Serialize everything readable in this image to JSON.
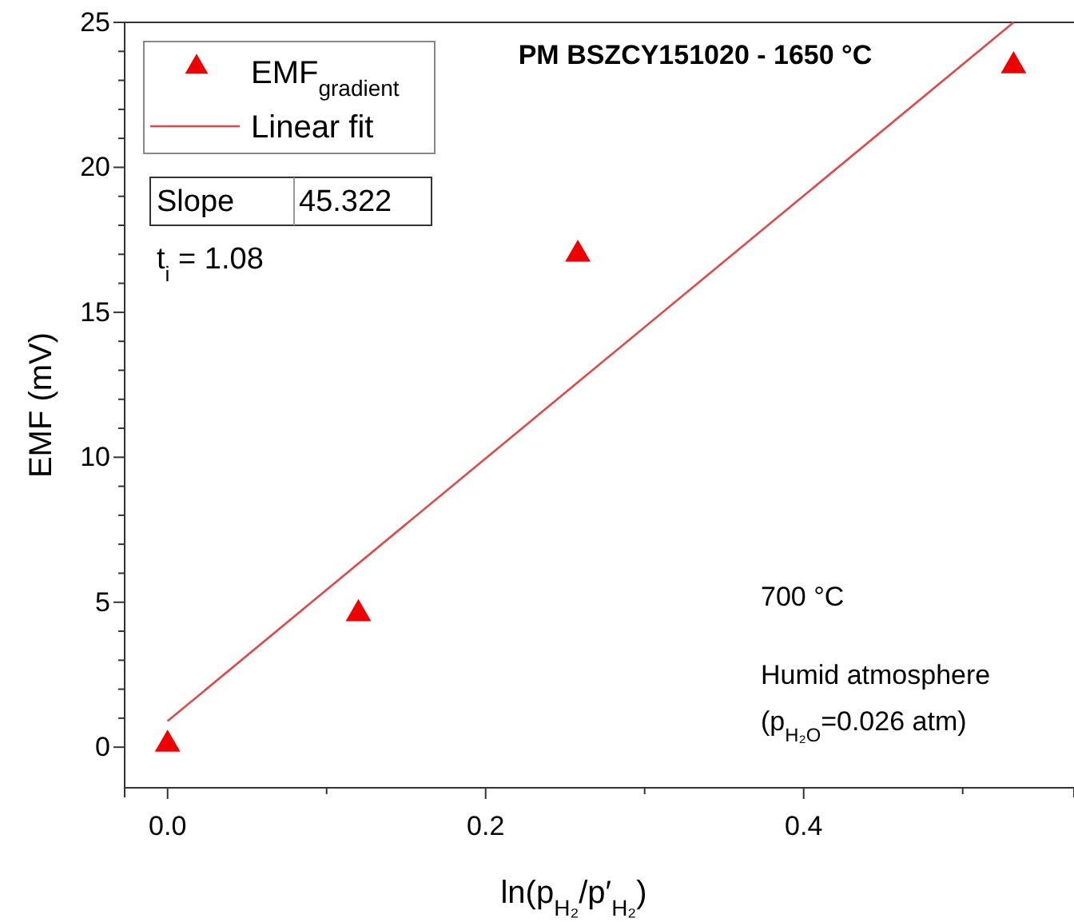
{
  "chart_data": {
    "type": "scatter",
    "title": "PM BSZCY151020 - 1650 °C",
    "xlabel": "ln(p$_{H₂}$/p′$_{H₂}$)",
    "ylabel": "EMF (mV)",
    "xlim": [
      -0.027,
      0.57
    ],
    "ylim": [
      -1.4,
      25
    ],
    "xticks": [
      {
        "value": 0,
        "label": "0.0"
      },
      {
        "value": 0.1,
        "label": null
      },
      {
        "value": 0.2,
        "label": "0.2"
      },
      {
        "value": 0.3,
        "label": null
      },
      {
        "value": 0.4,
        "label": "0.4"
      },
      {
        "value": 0.5,
        "label": null
      }
    ],
    "yticks": [
      0,
      {
        "value": 1,
        "label": null
      },
      {
        "value": 2,
        "label": null
      },
      {
        "value": 3,
        "label": null
      },
      {
        "value": 4,
        "label": null
      },
      5,
      {
        "value": 6,
        "label": null
      },
      {
        "value": 7,
        "label": null
      },
      {
        "value": 8,
        "label": null
      },
      {
        "value": 9,
        "label": null
      },
      10,
      {
        "value": 11,
        "label": null
      },
      {
        "value": 12,
        "label": null
      },
      {
        "value": 13,
        "label": null
      },
      {
        "value": 14,
        "label": null
      },
      15,
      {
        "value": 16,
        "label": null
      },
      {
        "value": 17,
        "label": null
      },
      {
        "value": 18,
        "label": null
      },
      {
        "value": 19,
        "label": null
      },
      20,
      {
        "value": 21,
        "label": null
      },
      {
        "value": 22,
        "label": null
      },
      {
        "value": 23,
        "label": null
      },
      {
        "value": 24,
        "label": null
      },
      25
    ],
    "legend": "top left",
    "grid": false,
    "series": [
      {
        "name": "EMF$_{gradient}$",
        "marker": "triangle",
        "color": "#ee0000",
        "x": [
          0,
          0.12,
          0.258,
          0.532
        ],
        "values": [
          0.1,
          4.6,
          17.0,
          23.5
        ]
      },
      {
        "name": "Linear fit",
        "type": "line",
        "color": "#e04848",
        "x": [
          0,
          0.532
        ],
        "values": [
          0.9,
          25.0
        ]
      }
    ],
    "annotations": [
      "Slope",
      "45.322",
      "t$_{i}$ = 1.08",
      "700 °C",
      "Humid atmosphere",
      "(p$_{H₂O}$=0.026 atm)"
    ]
  }
}
